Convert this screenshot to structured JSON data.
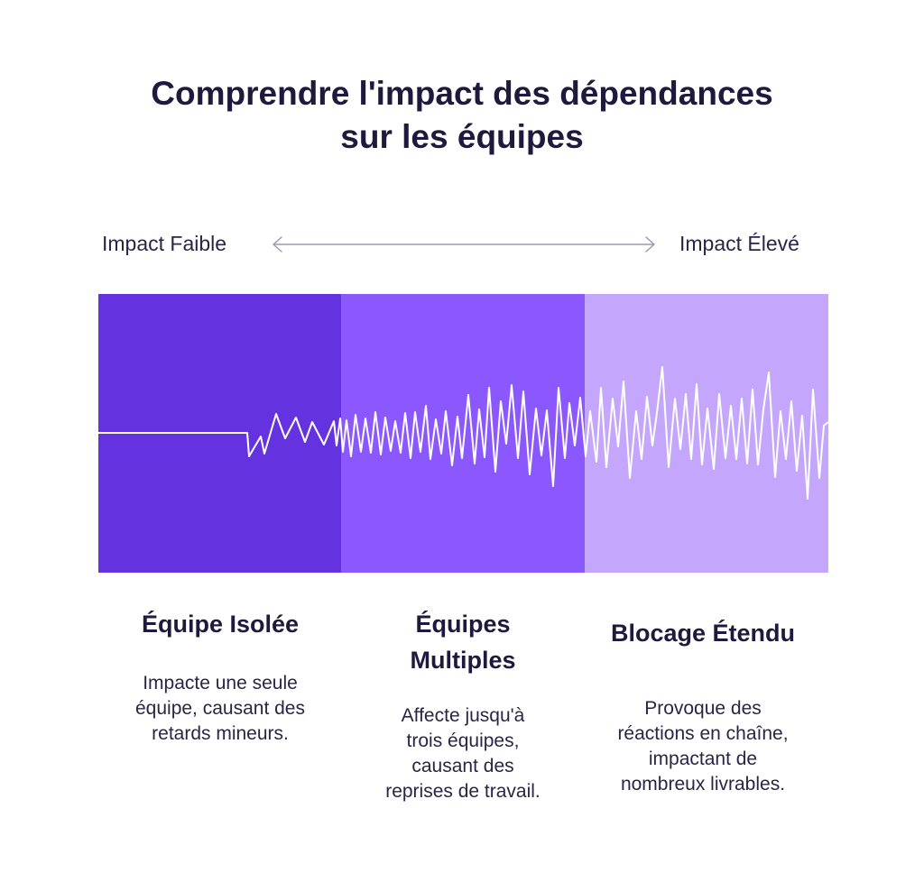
{
  "title": {
    "line1": "Comprendre l'impact des dépendances",
    "line2": "sur les équipes"
  },
  "scale": {
    "low_label": "Impact Faible",
    "high_label": "Impact Élevé"
  },
  "bands": [
    {
      "color": "#6433df"
    },
    {
      "color": "#8b57fe"
    },
    {
      "color": "#c4a6fd"
    }
  ],
  "waveform_color": "#ffffff",
  "columns": [
    {
      "title_lines": [
        "Équipe Isolée"
      ],
      "desc_lines": [
        "Impacte une seule",
        "équipe, causant des",
        "retards mineurs."
      ]
    },
    {
      "title_lines": [
        "Équipes",
        "Multiples"
      ],
      "desc_lines": [
        "Affecte jusqu'à",
        "trois équipes,",
        "causant des",
        "reprises de travail."
      ]
    },
    {
      "title_lines": [
        "Blocage Étendu"
      ],
      "desc_lines": [
        "Provoque des",
        "réactions en chaîne,",
        "impactant de",
        "nombreux livrables."
      ]
    }
  ]
}
